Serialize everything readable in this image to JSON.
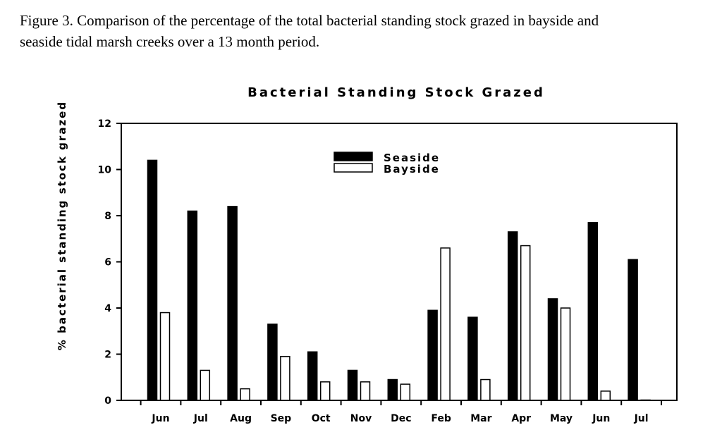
{
  "caption": {
    "line1": "Figure 3. Comparison of the percentage of the total bacterial standing stock grazed in bayside and",
    "line2": "seaside tidal marsh creeks over a 13 month period."
  },
  "chart_data": {
    "type": "bar",
    "title": "Bacterial Standing Stock Grazed",
    "xlabel": "",
    "ylabel": "% bacterial standing stock grazed",
    "ylim": [
      0,
      12
    ],
    "yticks": [
      "0",
      "2",
      "4",
      "6",
      "8",
      "10",
      "12"
    ],
    "categories": [
      "Jun",
      "Jul",
      "Aug",
      "Sep",
      "Oct",
      "Nov",
      "Dec",
      "Feb",
      "Mar",
      "Apr",
      "May",
      "Jun",
      "Jul"
    ],
    "series": [
      {
        "name": "Seaside",
        "color": "#000000",
        "values": [
          10.4,
          8.2,
          8.4,
          3.3,
          2.1,
          1.3,
          0.9,
          3.9,
          3.6,
          7.3,
          4.4,
          7.7,
          6.1
        ]
      },
      {
        "name": "Bayside",
        "color": "#ffffff",
        "values": [
          3.8,
          1.3,
          0.5,
          1.9,
          0.8,
          0.8,
          0.7,
          6.6,
          0.9,
          6.7,
          4.0,
          0.4,
          0.0
        ]
      }
    ],
    "grid": false,
    "legend_position": "top-center"
  }
}
